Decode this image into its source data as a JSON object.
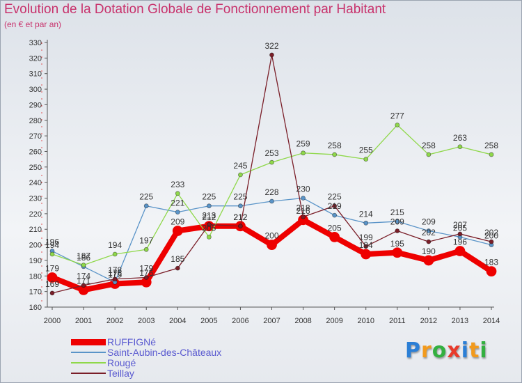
{
  "header": {
    "title": "Evolution de la Dotation Globale de Fonctionnement par Habitant",
    "subtitle": "(en € et par an)"
  },
  "logo": {
    "letters": [
      "P",
      "r",
      "o",
      "x",
      "i",
      "t",
      "i"
    ],
    "colors": [
      "#2b7fd6",
      "#f29a1c",
      "#33b040",
      "#e83a2a",
      "#2b7fd6",
      "#f29a1c",
      "#33b040"
    ]
  },
  "chart_data": {
    "type": "line",
    "title": "Evolution de la Dotation Globale de Fonctionnement par Habitant",
    "subtitle": "(en € et par an)",
    "xlabel": "",
    "ylabel": "",
    "ylim": [
      160,
      330
    ],
    "ytick_step": 10,
    "grid": false,
    "legend": "bottom-left",
    "x": [
      2000,
      2001,
      2002,
      2003,
      2004,
      2005,
      2006,
      2007,
      2008,
      2009,
      2010,
      2011,
      2012,
      2013,
      2014
    ],
    "series": [
      {
        "name": "RUFFIGNé",
        "color": "#ee0000",
        "values": [
          179,
          171,
          175,
          176,
          209,
          212,
          212,
          200,
          216,
          205,
          194,
          195,
          190,
          196,
          183
        ],
        "labels": [
          "179",
          "171",
          "175",
          "176",
          "209",
          "212",
          "212",
          "200",
          "216",
          "205",
          "194",
          "195",
          "190",
          "196",
          "183"
        ]
      },
      {
        "name": "Saint-Aubin-des-Châteaux",
        "color": "#5a94c8",
        "values": [
          196,
          186,
          176,
          225,
          221,
          225,
          225,
          228,
          230,
          219,
          214,
          215,
          209,
          205,
          200
        ],
        "labels": [
          "196",
          "186",
          "176",
          "225",
          "221",
          "225",
          "225",
          "228",
          "230",
          "219",
          "214",
          "215",
          "209",
          "205",
          "200"
        ]
      },
      {
        "name": "Rougé",
        "color": "#8fd84a",
        "values": [
          194,
          187,
          194,
          197,
          233,
          205,
          245,
          253,
          259,
          258,
          255,
          277,
          258,
          263,
          258
        ],
        "labels": [
          "194",
          "187",
          "194",
          "197",
          "233",
          "205",
          "245",
          "253",
          "259",
          "258",
          "255",
          "277",
          "258",
          "263",
          "258"
        ]
      },
      {
        "name": "Teillay",
        "color": "#7a1e28",
        "values": [
          169,
          174,
          178,
          179,
          185,
          213,
          212,
          322,
          218,
          225,
          199,
          209,
          202,
          207,
          202
        ],
        "labels": [
          "169",
          "174",
          "178",
          "179",
          "185",
          "213",
          "212",
          "322",
          "218",
          "225",
          "199",
          "209",
          "202",
          "207",
          "202"
        ]
      }
    ]
  }
}
